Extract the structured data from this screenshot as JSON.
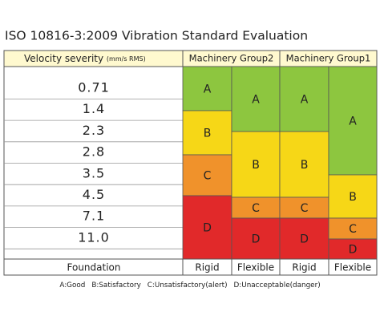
{
  "title": "ISO 10816-3:2009 Vibration Standard Evaluation",
  "header": {
    "label": "Velocity severity",
    "unit": "(mm/s RMS)",
    "groups": [
      "Machinery Group2",
      "Machinery Group1"
    ]
  },
  "velocities": [
    "0.71",
    "1.4",
    "2.3",
    "2.8",
    "3.5",
    "4.5",
    "7.1",
    "11.0"
  ],
  "columns": [
    {
      "zones": [
        "A",
        "B",
        "C",
        "D"
      ]
    },
    {
      "zones": [
        "A",
        "B",
        "C",
        "D"
      ]
    },
    {
      "zones": [
        "A",
        "B",
        "C",
        "D"
      ]
    },
    {
      "zones": [
        "A",
        "B",
        "C",
        "D"
      ]
    }
  ],
  "foundation": {
    "label": "Foundation",
    "types": [
      "Rigid",
      "Flexible",
      "Rigid",
      "Flexible"
    ]
  },
  "legend": [
    "A:Good",
    "B:Satisfactory",
    "C:Unsatisfactory(alert)",
    "D:Unacceptable(danger)"
  ]
}
